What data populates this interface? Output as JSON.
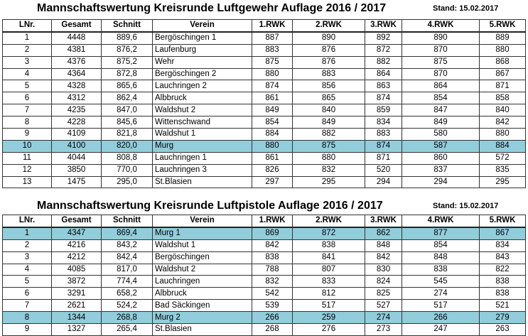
{
  "columns": [
    "LNr.",
    "Gesamt",
    "Schnitt",
    "Verein",
    "1.RWK",
    "2.RWK",
    "3.RWK",
    "4.RWK",
    "5.RWK"
  ],
  "highlight_color": "#92cddc",
  "tables": [
    {
      "title": "Mannschaftswertung Kreisrunde Luftgewehr Auflage 2016 / 2017",
      "stand": "Stand: 15.02.2017",
      "rows": [
        {
          "cells": [
            "1",
            "4448",
            "889,6",
            "Bergöschingen 1",
            "887",
            "890",
            "892",
            "890",
            "889"
          ]
        },
        {
          "cells": [
            "2",
            "4381",
            "876,2",
            "Laufenburg",
            "883",
            "876",
            "872",
            "870",
            "880"
          ]
        },
        {
          "cells": [
            "3",
            "4376",
            "875,2",
            "Wehr",
            "875",
            "876",
            "882",
            "875",
            "868"
          ]
        },
        {
          "cells": [
            "4",
            "4364",
            "872,8",
            "Bergöschingen 2",
            "880",
            "883",
            "864",
            "870",
            "867"
          ]
        },
        {
          "cells": [
            "5",
            "4328",
            "865,6",
            "Lauchringen 2",
            "874",
            "856",
            "863",
            "864",
            "871"
          ]
        },
        {
          "cells": [
            "6",
            "4312",
            "862,4",
            "Albbruck",
            "861",
            "865",
            "874",
            "854",
            "858"
          ]
        },
        {
          "cells": [
            "7",
            "4235",
            "847,0",
            "Waldshut 2",
            "849",
            "840",
            "859",
            "847",
            "840"
          ]
        },
        {
          "cells": [
            "8",
            "4228",
            "845,6",
            "Wittenschwand",
            "854",
            "849",
            "834",
            "849",
            "842"
          ]
        },
        {
          "cells": [
            "9",
            "4109",
            "821,8",
            "Waldshut 1",
            "884",
            "882",
            "883",
            "580",
            "880"
          ]
        },
        {
          "cells": [
            "10",
            "4100",
            "820,0",
            "Murg",
            "880",
            "875",
            "874",
            "587",
            "884"
          ],
          "highlighted": true
        },
        {
          "cells": [
            "11",
            "4044",
            "808,8",
            "Lauchringen 1",
            "861",
            "880",
            "871",
            "860",
            "572"
          ]
        },
        {
          "cells": [
            "12",
            "3850",
            "770,0",
            "Lauchringen 3",
            "826",
            "832",
            "520",
            "837",
            "835"
          ]
        },
        {
          "cells": [
            "13",
            "1475",
            "295,0",
            "St.Blasien",
            "297",
            "295",
            "294",
            "294",
            "295"
          ]
        }
      ]
    },
    {
      "title": "Mannschaftswertung Kreisrunde Luftpistole Auflage 2016 / 2017",
      "stand": "Stand: 15.02.2017",
      "rows": [
        {
          "cells": [
            "1",
            "4347",
            "869,4",
            "Murg 1",
            "869",
            "872",
            "862",
            "877",
            "867"
          ],
          "highlighted": true
        },
        {
          "cells": [
            "2",
            "4216",
            "843,2",
            "Waldshut 1",
            "842",
            "838",
            "848",
            "854",
            "834"
          ]
        },
        {
          "cells": [
            "3",
            "4212",
            "842,4",
            "Bergöschingen",
            "838",
            "841",
            "842",
            "848",
            "843"
          ]
        },
        {
          "cells": [
            "4",
            "4085",
            "817,0",
            "Waldshut 2",
            "788",
            "807",
            "830",
            "838",
            "822"
          ]
        },
        {
          "cells": [
            "5",
            "3872",
            "774,4",
            "Lauchringen",
            "832",
            "833",
            "824",
            "545",
            "838"
          ]
        },
        {
          "cells": [
            "6",
            "3291",
            "658,2",
            "Albbruck",
            "542",
            "812",
            "825",
            "274",
            "838"
          ]
        },
        {
          "cells": [
            "7",
            "2621",
            "524,2",
            "Bad Säckingen",
            "539",
            "517",
            "527",
            "517",
            "521"
          ]
        },
        {
          "cells": [
            "8",
            "1344",
            "268,8",
            "Murg 2",
            "266",
            "259",
            "274",
            "266",
            "279"
          ],
          "highlighted": true
        },
        {
          "cells": [
            "9",
            "1327",
            "265,4",
            "St.Blasien",
            "268",
            "276",
            "273",
            "247",
            "263"
          ]
        }
      ]
    }
  ]
}
